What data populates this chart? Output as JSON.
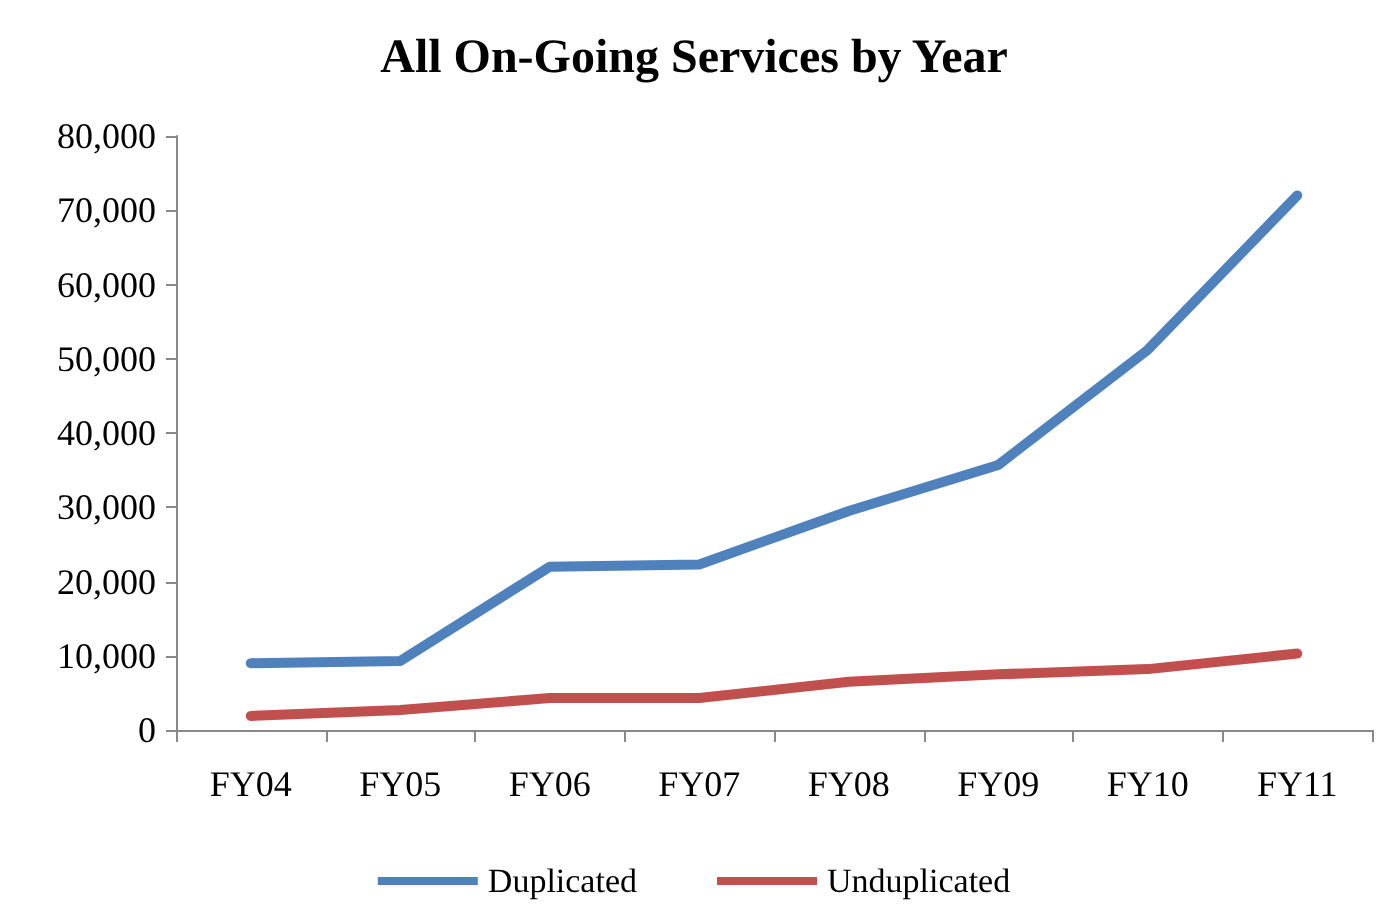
{
  "chart_data": {
    "type": "line",
    "title": "All On-Going Services by Year",
    "categories": [
      "FY04",
      "FY05",
      "FY06",
      "FY07",
      "FY08",
      "FY09",
      "FY10",
      "FY11"
    ],
    "series": [
      {
        "name": "Duplicated",
        "color": "#4f81bd",
        "values": [
          9000,
          9300,
          22000,
          22300,
          29500,
          35700,
          51200,
          72000
        ]
      },
      {
        "name": "Unduplicated",
        "color": "#c0504d",
        "values": [
          1900,
          2700,
          4300,
          4300,
          6500,
          7500,
          8200,
          10300
        ]
      }
    ],
    "ylim": [
      0,
      80000
    ],
    "yticks": [
      0,
      {
        "value": 10000,
        "label": "10,000"
      },
      {
        "value": 20000,
        "label": "20,000"
      },
      {
        "value": 30000,
        "label": "30,000"
      },
      {
        "value": 40000,
        "label": "40,000"
      },
      {
        "value": 50000,
        "label": "50,000"
      },
      {
        "value": 60000,
        "label": "60,000"
      },
      {
        "value": 70000,
        "label": "70,000"
      },
      {
        "value": 80000,
        "label": "80,000"
      }
    ],
    "grid": false,
    "legend": "bottom",
    "marker": "none",
    "line_style": "solid"
  }
}
